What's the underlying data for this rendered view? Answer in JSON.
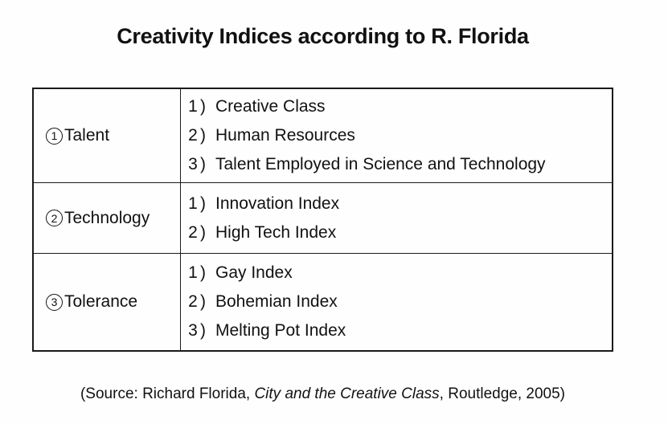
{
  "title": "Creativity Indices according to R. Florida",
  "table": {
    "rows": [
      {
        "num": "1",
        "category": "Talent",
        "items": [
          {
            "n": "1",
            "label": "Creative Class"
          },
          {
            "n": "2",
            "label": "Human Resources"
          },
          {
            "n": "3",
            "label": "Talent Employed in Science and Technology"
          }
        ]
      },
      {
        "num": "2",
        "category": "Technology",
        "items": [
          {
            "n": "1",
            "label": "Innovation Index"
          },
          {
            "n": "2",
            "label": "High Tech Index"
          }
        ]
      },
      {
        "num": "3",
        "category": "Tolerance",
        "items": [
          {
            "n": "1",
            "label": "Gay Index"
          },
          {
            "n": "2",
            "label": "Bohemian Index"
          },
          {
            "n": "3",
            "label": "Melting Pot Index"
          }
        ]
      }
    ]
  },
  "source": {
    "prefix": "(Source: Richard Florida, ",
    "book_title": "City and the Creative Class",
    "suffix": ", Routledge, 2005)"
  },
  "colors": {
    "text": "#111111",
    "border": "#1a1a1a",
    "background": "#fefefe"
  }
}
